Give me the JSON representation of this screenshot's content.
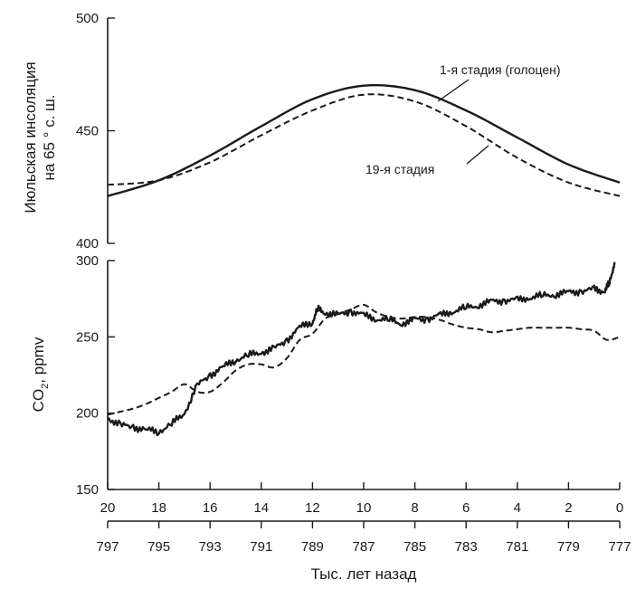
{
  "chart_data": [
    {
      "type": "line",
      "panel": "top",
      "ylabel_line1": "Июльская инсоляция",
      "ylabel_line2": "на 65 ° с. ш.",
      "ylim": [
        400,
        500
      ],
      "yticks": [
        400,
        450,
        500
      ],
      "xlim": [
        20,
        0
      ],
      "series": [
        {
          "name": "1-я стадия (голоцен)",
          "style": "solid",
          "x": [
            20,
            18,
            16,
            14,
            12,
            10,
            8,
            6,
            4,
            2,
            0
          ],
          "y": [
            421,
            428,
            439,
            452,
            464,
            470,
            468,
            459,
            447,
            435,
            427
          ]
        },
        {
          "name": "19-я стадия",
          "style": "dashed",
          "x": [
            20,
            18,
            16,
            14,
            12,
            10,
            8,
            6,
            4,
            2,
            0
          ],
          "y": [
            426,
            428,
            436,
            448,
            459,
            466,
            463,
            452,
            438,
            427,
            421
          ]
        }
      ]
    },
    {
      "type": "line",
      "panel": "bottom",
      "ylabel_main": "CO",
      "ylabel_sub": "2",
      "ylabel_rest": ", ppmv",
      "ylim": [
        150,
        300
      ],
      "yticks": [
        150,
        200,
        250,
        300
      ],
      "xlim": [
        20,
        0
      ],
      "xticks_top": [
        "20",
        "18",
        "16",
        "14",
        "12",
        "10",
        "8",
        "6",
        "4",
        "2",
        "0"
      ],
      "xticks_bottom": [
        "797",
        "795",
        "793",
        "791",
        "789",
        "787",
        "785",
        "783",
        "781",
        "779",
        "777"
      ],
      "xlabel": "Тыс. лет назад",
      "series": [
        {
          "name": "",
          "style": "solid",
          "x": [
            20,
            19.5,
            19,
            18.5,
            18,
            17.5,
            17,
            16.5,
            16,
            15.5,
            15,
            14.5,
            14,
            13.5,
            13,
            12.5,
            12,
            11.8,
            11.5,
            11,
            10.5,
            10,
            9.5,
            9,
            8.5,
            8,
            7.5,
            7,
            6.5,
            6,
            5.5,
            5,
            4.5,
            4,
            3.5,
            3,
            2.5,
            2,
            1.5,
            1,
            0.6,
            0.4,
            0.2
          ],
          "y": [
            197,
            192,
            191,
            189,
            188,
            193,
            200,
            218,
            225,
            230,
            235,
            238,
            240,
            242,
            248,
            256,
            260,
            268,
            266,
            264,
            267,
            264,
            262,
            261,
            259,
            261,
            262,
            264,
            267,
            269,
            271,
            273,
            274,
            274,
            276,
            277,
            278,
            279,
            280,
            281,
            280,
            285,
            299
          ]
        },
        {
          "name": "",
          "style": "dashed",
          "x": [
            20,
            19.5,
            19,
            18.5,
            18,
            17.5,
            17,
            16.5,
            16,
            15.5,
            15,
            14.5,
            14,
            13.5,
            13,
            12.5,
            12,
            11.5,
            11,
            10.5,
            10,
            9.5,
            9,
            8.5,
            8,
            7.5,
            7,
            6.5,
            6,
            5.5,
            5,
            4.5,
            4,
            3.5,
            3,
            2.5,
            2,
            1.5,
            1,
            0.5,
            0
          ],
          "y": [
            199,
            201,
            203,
            206,
            210,
            214,
            219,
            214,
            214,
            220,
            228,
            232,
            232,
            230,
            236,
            248,
            252,
            262,
            265,
            268,
            271,
            266,
            263,
            262,
            263,
            263,
            261,
            258,
            256,
            255,
            253,
            254,
            255,
            256,
            256,
            256,
            256,
            255,
            254,
            248,
            250
          ]
        }
      ]
    }
  ]
}
